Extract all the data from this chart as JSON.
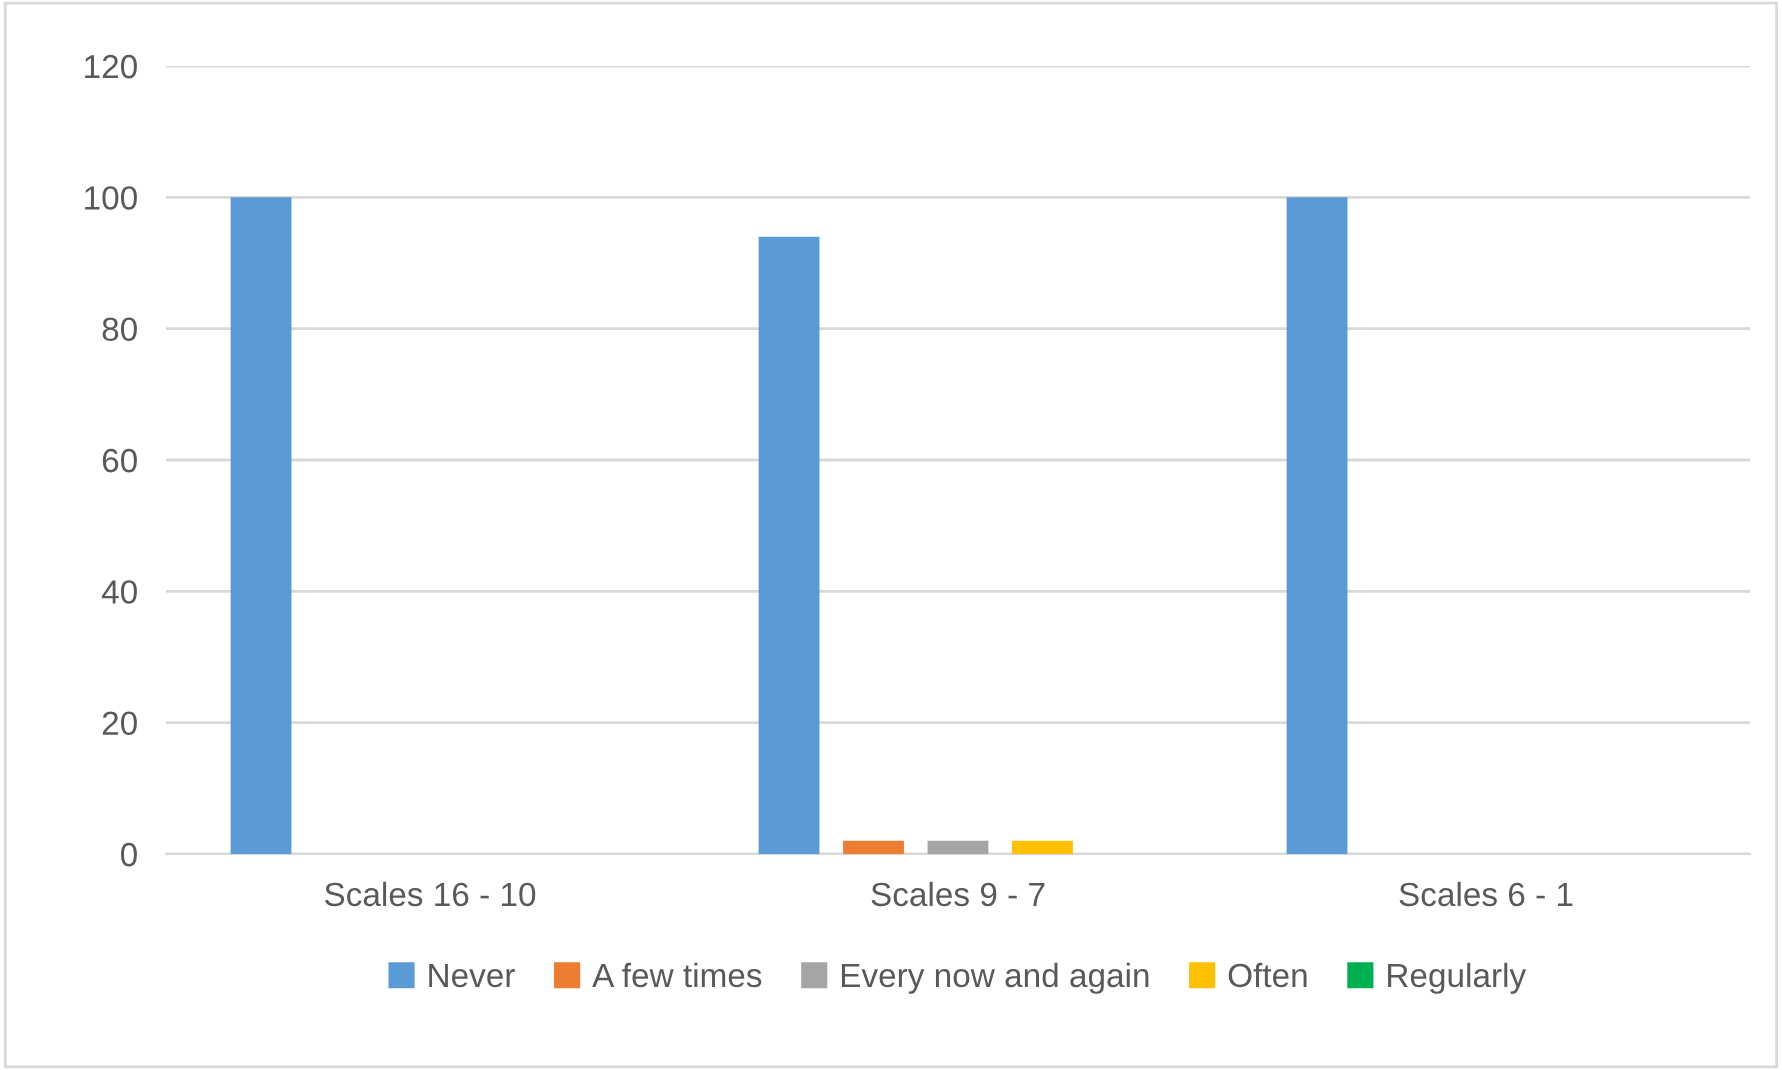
{
  "chart_data": {
    "type": "bar",
    "categories": [
      "Scales 16 - 10",
      "Scales 9 - 7",
      "Scales 6 - 1"
    ],
    "series": [
      {
        "name": "Never",
        "color": "#5b9bd5",
        "values": [
          100,
          94,
          100
        ]
      },
      {
        "name": "A few times",
        "color": "#ed7d31",
        "values": [
          0,
          2,
          0
        ]
      },
      {
        "name": "Every now and again",
        "color": "#a5a5a5",
        "values": [
          0,
          2,
          0
        ]
      },
      {
        "name": "Often",
        "color": "#ffc000",
        "values": [
          0,
          2,
          0
        ]
      },
      {
        "name": "Regularly",
        "color": "#00b050",
        "values": [
          0,
          0,
          0
        ]
      }
    ],
    "ylim": [
      0,
      120
    ],
    "yticks": [
      0,
      20,
      40,
      60,
      80,
      100,
      120
    ],
    "grid": "y",
    "legend": "bottom"
  }
}
